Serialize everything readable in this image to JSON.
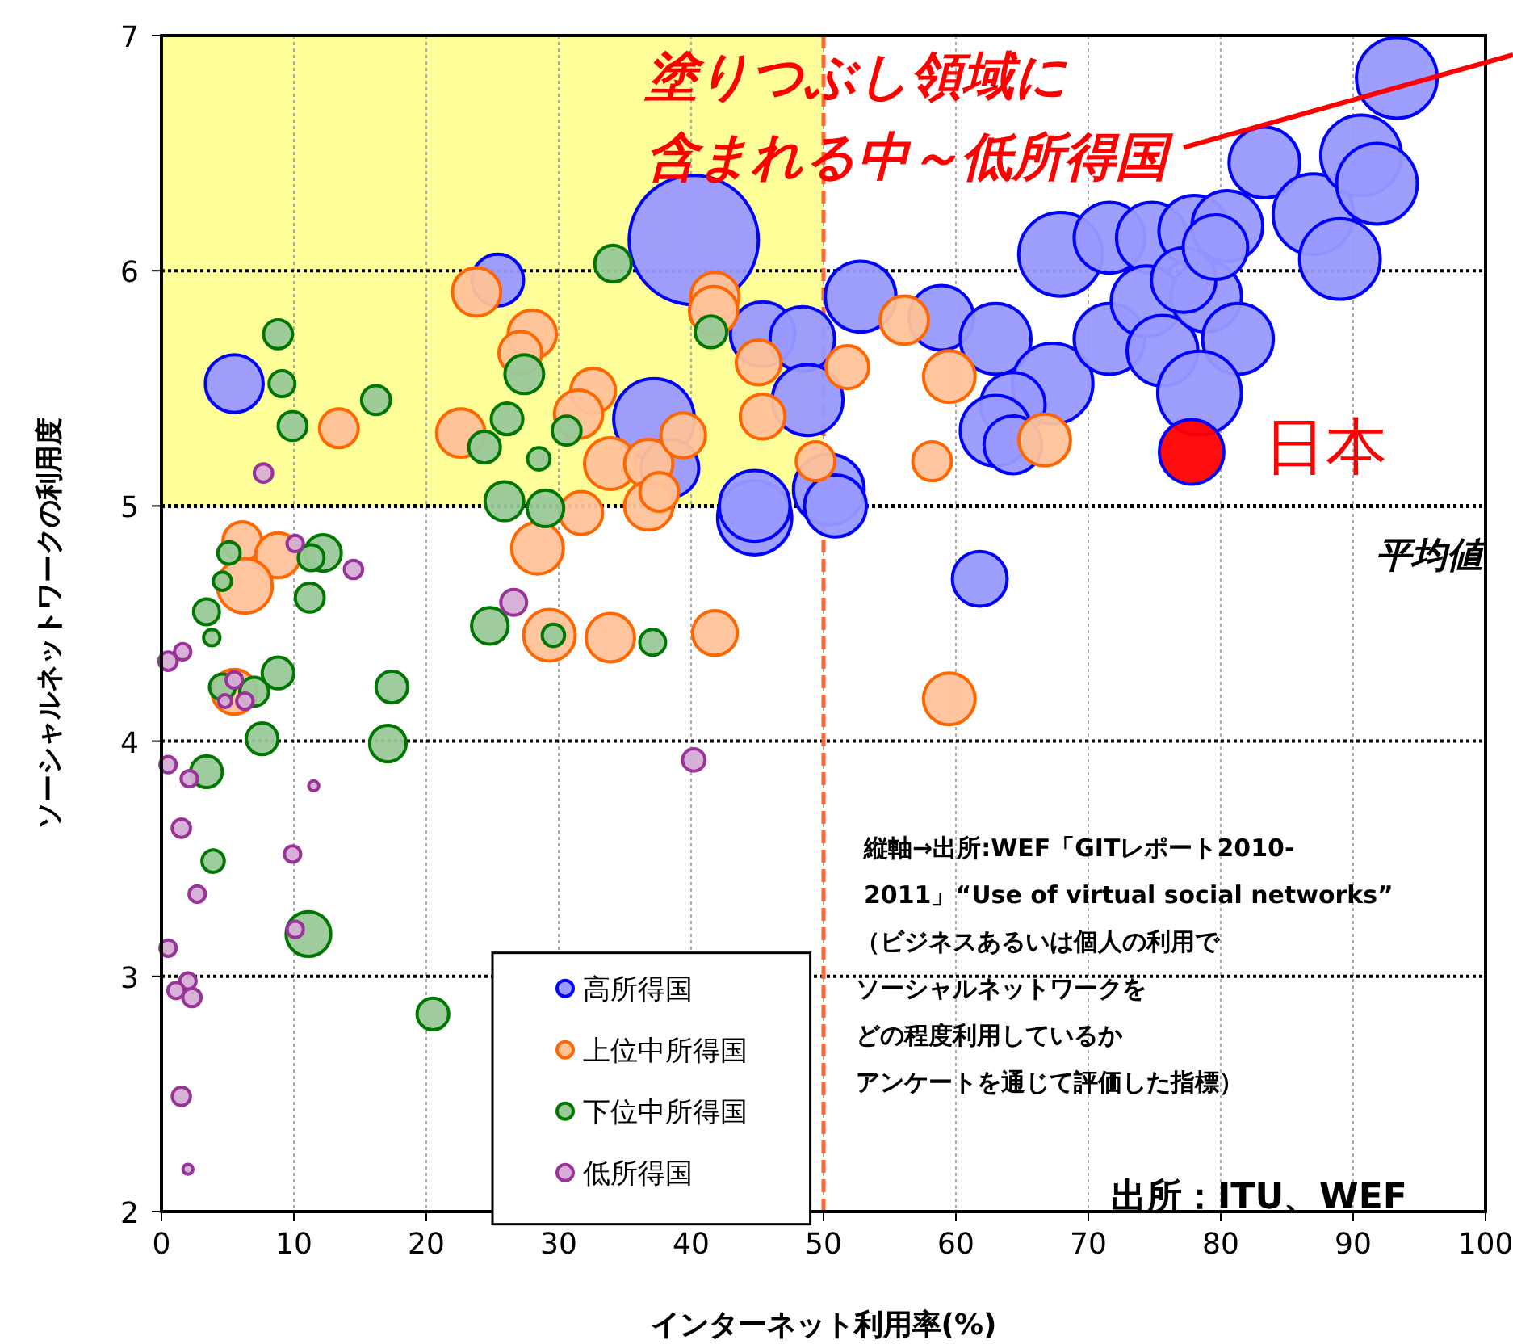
{
  "chart_data": {
    "type": "bubble",
    "xlabel": "インターネット利用率(%)",
    "ylabel": "ソーシャルネットワークの利用度",
    "xlim": [
      0,
      100
    ],
    "xticks": [
      0,
      10,
      20,
      30,
      40,
      50,
      60,
      70,
      80,
      90,
      100
    ],
    "ylim": [
      2,
      7
    ],
    "yticks": [
      2,
      3,
      4,
      5,
      6,
      7
    ],
    "grid": true,
    "legend": "bottom",
    "marker": "circle",
    "series": [
      {
        "name": "高所得国",
        "color": "#0000ff",
        "x": [
          5.5,
          25.4,
          40.2,
          37.2,
          38.4,
          44.8,
          45.4,
          52.8,
          48.4,
          48.8,
          44.8,
          50.4,
          50.9,
          58.9,
          63.0,
          61.8,
          67.3,
          64.3,
          63.0,
          64.3,
          67.9,
          71.6,
          74.8,
          78.0,
          80.5,
          83.3,
          87.0,
          90.6,
          91.8,
          89.0,
          93.3,
          71.6,
          74.4,
          75.6,
          78.9,
          81.3,
          78.4,
          77.2,
          79.6
        ],
        "values": [
          5.52,
          5.96,
          6.13,
          5.37,
          5.16,
          4.95,
          5.73,
          5.89,
          5.71,
          5.45,
          5.0,
          5.07,
          5.0,
          5.8,
          5.71,
          4.69,
          5.52,
          5.43,
          5.32,
          5.26,
          6.07,
          6.14,
          6.14,
          6.17,
          6.19,
          6.46,
          6.24,
          6.49,
          6.37,
          6.05,
          6.82,
          5.71,
          5.87,
          5.66,
          5.89,
          5.71,
          5.48,
          5.96,
          6.1
        ],
        "sizes": [
          0.2,
          0.16,
          1,
          0.39,
          0.2,
          0.33,
          0.25,
          0.3,
          0.25,
          0.3,
          0.3,
          0.3,
          0.23,
          0.25,
          0.3,
          0.18,
          0.39,
          0.25,
          0.3,
          0.2,
          0.42,
          0.3,
          0.3,
          0.3,
          0.3,
          0.3,
          0.39,
          0.39,
          0.39,
          0.39,
          0.39,
          0.3,
          0.3,
          0.3,
          0.3,
          0.3,
          0.42,
          0.25,
          0.25
        ]
      },
      {
        "name": "上位中所得国",
        "color": "#ff6600",
        "x": [
          23.8,
          28.0,
          27.1,
          22.6,
          13.4,
          32.6,
          31.5,
          33.9,
          36.8,
          39.4,
          36.8,
          37.6,
          31.7,
          28.4,
          41.8,
          41.7,
          45.1,
          45.4,
          56.1,
          51.8,
          59.5,
          66.7,
          58.2,
          49.4,
          6.1,
          8.8,
          6.3,
          29.3,
          33.9,
          41.8,
          5.5,
          59.5
        ],
        "values": [
          5.91,
          5.73,
          5.65,
          5.31,
          5.33,
          5.49,
          5.39,
          5.18,
          5.18,
          5.3,
          5.0,
          5.06,
          4.97,
          4.82,
          5.89,
          5.83,
          5.61,
          5.38,
          5.79,
          5.59,
          5.55,
          5.28,
          5.19,
          5.19,
          4.85,
          4.79,
          4.66,
          4.45,
          4.44,
          4.46,
          4.21,
          4.18
        ],
        "sizes": [
          0.14,
          0.14,
          0.11,
          0.14,
          0.09,
          0.12,
          0.14,
          0.16,
          0.14,
          0.12,
          0.14,
          0.09,
          0.11,
          0.16,
          0.14,
          0.14,
          0.12,
          0.12,
          0.14,
          0.11,
          0.16,
          0.16,
          0.09,
          0.09,
          0.09,
          0.12,
          0.18,
          0.16,
          0.14,
          0.12,
          0.12,
          0.16
        ]
      },
      {
        "name": "下位中所得国",
        "color": "#007700",
        "x": [
          8.8,
          9.1,
          9.9,
          16.2,
          34.1,
          41.5,
          27.4,
          26.1,
          24.4,
          30.6,
          28.5,
          25.9,
          29.0,
          5.1,
          4.6,
          12.2,
          11.3,
          11.2,
          3.4,
          3.8,
          24.8,
          29.6,
          37.1,
          4.6,
          7.0,
          8.8,
          17.4,
          7.6,
          17.1,
          3.4,
          3.9,
          11.1,
          20.5
        ],
        "values": [
          5.73,
          5.52,
          5.34,
          5.45,
          6.03,
          5.74,
          5.56,
          5.37,
          5.25,
          5.32,
          5.2,
          5.02,
          4.99,
          4.8,
          4.68,
          4.8,
          4.78,
          4.61,
          4.55,
          4.44,
          4.49,
          4.45,
          4.42,
          4.23,
          4.21,
          4.29,
          4.23,
          4.01,
          3.99,
          3.87,
          3.49,
          3.18,
          2.84
        ],
        "sizes": [
          0.05,
          0.04,
          0.05,
          0.05,
          0.08,
          0.06,
          0.09,
          0.06,
          0.06,
          0.05,
          0.03,
          0.09,
          0.08,
          0.03,
          0.02,
          0.08,
          0.04,
          0.05,
          0.04,
          0.016,
          0.08,
          0.03,
          0.04,
          0.04,
          0.05,
          0.06,
          0.06,
          0.06,
          0.08,
          0.06,
          0.03,
          0.12,
          0.06
        ]
      },
      {
        "name": "低所得国",
        "color": "#993399",
        "x": [
          7.7,
          10.1,
          14.5,
          26.6,
          1.6,
          0.5,
          5.5,
          4.8,
          6.3,
          0.5,
          2.1,
          11.5,
          40.2,
          1.5,
          9.9,
          2.7,
          10.1,
          0.5,
          2.0,
          1.1,
          2.3,
          1.5,
          2.0
        ],
        "values": [
          5.14,
          4.84,
          4.73,
          4.59,
          4.38,
          4.34,
          4.26,
          4.17,
          4.17,
          3.9,
          3.84,
          3.81,
          3.92,
          3.63,
          3.52,
          3.35,
          3.2,
          3.12,
          2.98,
          2.94,
          2.91,
          2.49,
          2.18
        ],
        "sizes": [
          0.02,
          0.016,
          0.02,
          0.04,
          0.016,
          0.02,
          0.016,
          0.01,
          0.016,
          0.016,
          0.016,
          0.006,
          0.03,
          0.02,
          0.016,
          0.016,
          0.016,
          0.016,
          0.016,
          0.016,
          0.02,
          0.02,
          0.006
        ]
      },
      {
        "color": "#ff0000",
        "x": [
          77.8
        ],
        "values": [
          5.23
        ],
        "sizes": [
          0.25
        ]
      }
    ],
    "ref_lines": [
      {
        "axis": "y",
        "value": 5,
        "label": "平均値",
        "color": "#000000",
        "line_style": "dotted"
      },
      {
        "axis": "x",
        "value": 50,
        "color": "#ff6633",
        "line_style": "dashed"
      }
    ],
    "bands": [
      {
        "axis": "x",
        "from": 0,
        "to": 50,
        "color": "#ffff99"
      }
    ],
    "annotations": [
      "塗りつぶし領域に",
      "含まれる中～低所得国",
      {
        "text": "日本",
        "x": 77.8,
        "y": 5.23
      },
      "縦軸→出所:WEF「GITレポート2010-",
      "2011」“Use of virtual social networks”",
      "（ビジネスあるいは個人の利用で",
      "ソーシャルネットワークを",
      "どの程度利用しているか",
      "アンケートを通じて評価した指標）",
      "出所：ITU、WEF"
    ]
  }
}
